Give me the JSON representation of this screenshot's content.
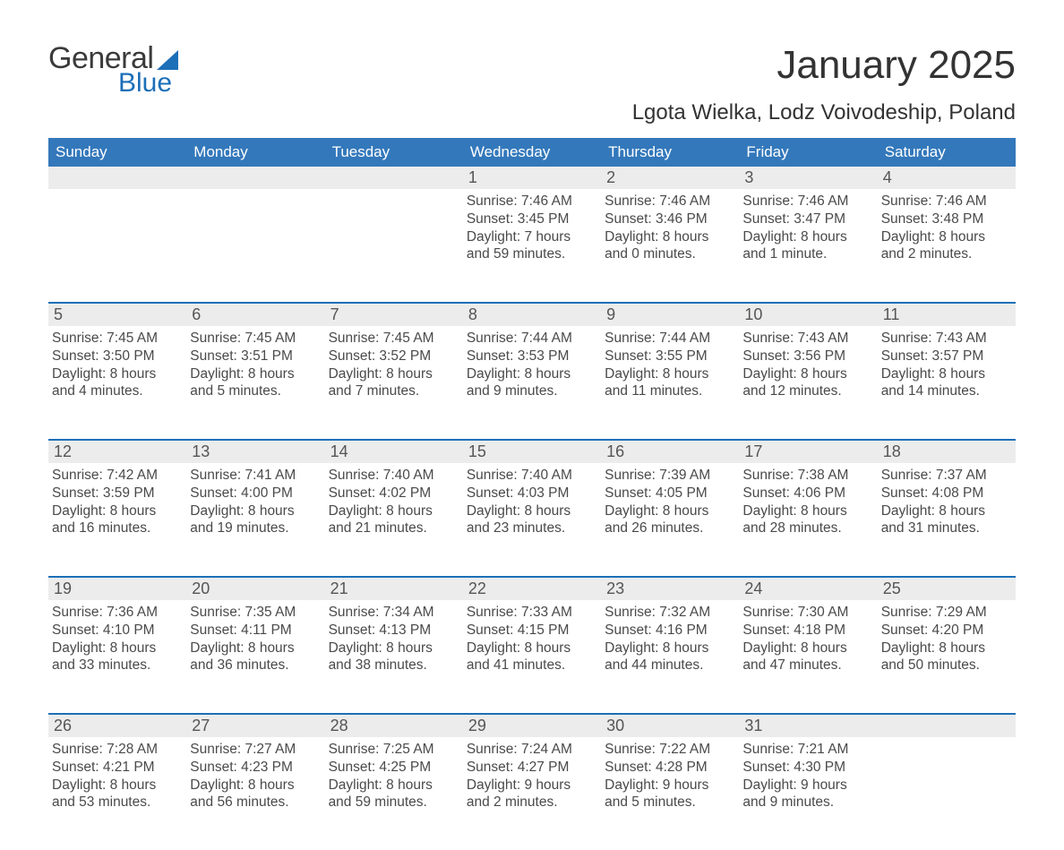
{
  "colors": {
    "header_blue": "#3378bb",
    "accent_blue": "#1d6fb8",
    "row_gray": "#ececec",
    "background": "#ffffff",
    "text_dark": "#333333",
    "text_mid": "#4a4a4a"
  },
  "logo": {
    "word1": "General",
    "word2": "Blue",
    "sail_color": "#1d6fb8"
  },
  "header": {
    "month_title": "January 2025",
    "location": "Lgota Wielka, Lodz Voivodeship, Poland"
  },
  "labels": {
    "sunrise": "Sunrise:",
    "sunset": "Sunset:",
    "daylight": "Daylight:"
  },
  "calendar": {
    "type": "table",
    "columns": [
      "Sunday",
      "Monday",
      "Tuesday",
      "Wednesday",
      "Thursday",
      "Friday",
      "Saturday"
    ],
    "weeks": [
      [
        null,
        null,
        null,
        {
          "day": "1",
          "sunrise": "7:46 AM",
          "sunset": "3:45 PM",
          "daylight": "7 hours and 59 minutes."
        },
        {
          "day": "2",
          "sunrise": "7:46 AM",
          "sunset": "3:46 PM",
          "daylight": "8 hours and 0 minutes."
        },
        {
          "day": "3",
          "sunrise": "7:46 AM",
          "sunset": "3:47 PM",
          "daylight": "8 hours and 1 minute."
        },
        {
          "day": "4",
          "sunrise": "7:46 AM",
          "sunset": "3:48 PM",
          "daylight": "8 hours and 2 minutes."
        }
      ],
      [
        {
          "day": "5",
          "sunrise": "7:45 AM",
          "sunset": "3:50 PM",
          "daylight": "8 hours and 4 minutes."
        },
        {
          "day": "6",
          "sunrise": "7:45 AM",
          "sunset": "3:51 PM",
          "daylight": "8 hours and 5 minutes."
        },
        {
          "day": "7",
          "sunrise": "7:45 AM",
          "sunset": "3:52 PM",
          "daylight": "8 hours and 7 minutes."
        },
        {
          "day": "8",
          "sunrise": "7:44 AM",
          "sunset": "3:53 PM",
          "daylight": "8 hours and 9 minutes."
        },
        {
          "day": "9",
          "sunrise": "7:44 AM",
          "sunset": "3:55 PM",
          "daylight": "8 hours and 11 minutes."
        },
        {
          "day": "10",
          "sunrise": "7:43 AM",
          "sunset": "3:56 PM",
          "daylight": "8 hours and 12 minutes."
        },
        {
          "day": "11",
          "sunrise": "7:43 AM",
          "sunset": "3:57 PM",
          "daylight": "8 hours and 14 minutes."
        }
      ],
      [
        {
          "day": "12",
          "sunrise": "7:42 AM",
          "sunset": "3:59 PM",
          "daylight": "8 hours and 16 minutes."
        },
        {
          "day": "13",
          "sunrise": "7:41 AM",
          "sunset": "4:00 PM",
          "daylight": "8 hours and 19 minutes."
        },
        {
          "day": "14",
          "sunrise": "7:40 AM",
          "sunset": "4:02 PM",
          "daylight": "8 hours and 21 minutes."
        },
        {
          "day": "15",
          "sunrise": "7:40 AM",
          "sunset": "4:03 PM",
          "daylight": "8 hours and 23 minutes."
        },
        {
          "day": "16",
          "sunrise": "7:39 AM",
          "sunset": "4:05 PM",
          "daylight": "8 hours and 26 minutes."
        },
        {
          "day": "17",
          "sunrise": "7:38 AM",
          "sunset": "4:06 PM",
          "daylight": "8 hours and 28 minutes."
        },
        {
          "day": "18",
          "sunrise": "7:37 AM",
          "sunset": "4:08 PM",
          "daylight": "8 hours and 31 minutes."
        }
      ],
      [
        {
          "day": "19",
          "sunrise": "7:36 AM",
          "sunset": "4:10 PM",
          "daylight": "8 hours and 33 minutes."
        },
        {
          "day": "20",
          "sunrise": "7:35 AM",
          "sunset": "4:11 PM",
          "daylight": "8 hours and 36 minutes."
        },
        {
          "day": "21",
          "sunrise": "7:34 AM",
          "sunset": "4:13 PM",
          "daylight": "8 hours and 38 minutes."
        },
        {
          "day": "22",
          "sunrise": "7:33 AM",
          "sunset": "4:15 PM",
          "daylight": "8 hours and 41 minutes."
        },
        {
          "day": "23",
          "sunrise": "7:32 AM",
          "sunset": "4:16 PM",
          "daylight": "8 hours and 44 minutes."
        },
        {
          "day": "24",
          "sunrise": "7:30 AM",
          "sunset": "4:18 PM",
          "daylight": "8 hours and 47 minutes."
        },
        {
          "day": "25",
          "sunrise": "7:29 AM",
          "sunset": "4:20 PM",
          "daylight": "8 hours and 50 minutes."
        }
      ],
      [
        {
          "day": "26",
          "sunrise": "7:28 AM",
          "sunset": "4:21 PM",
          "daylight": "8 hours and 53 minutes."
        },
        {
          "day": "27",
          "sunrise": "7:27 AM",
          "sunset": "4:23 PM",
          "daylight": "8 hours and 56 minutes."
        },
        {
          "day": "28",
          "sunrise": "7:25 AM",
          "sunset": "4:25 PM",
          "daylight": "8 hours and 59 minutes."
        },
        {
          "day": "29",
          "sunrise": "7:24 AM",
          "sunset": "4:27 PM",
          "daylight": "9 hours and 2 minutes."
        },
        {
          "day": "30",
          "sunrise": "7:22 AM",
          "sunset": "4:28 PM",
          "daylight": "9 hours and 5 minutes."
        },
        {
          "day": "31",
          "sunrise": "7:21 AM",
          "sunset": "4:30 PM",
          "daylight": "9 hours and 9 minutes."
        },
        null
      ]
    ]
  }
}
